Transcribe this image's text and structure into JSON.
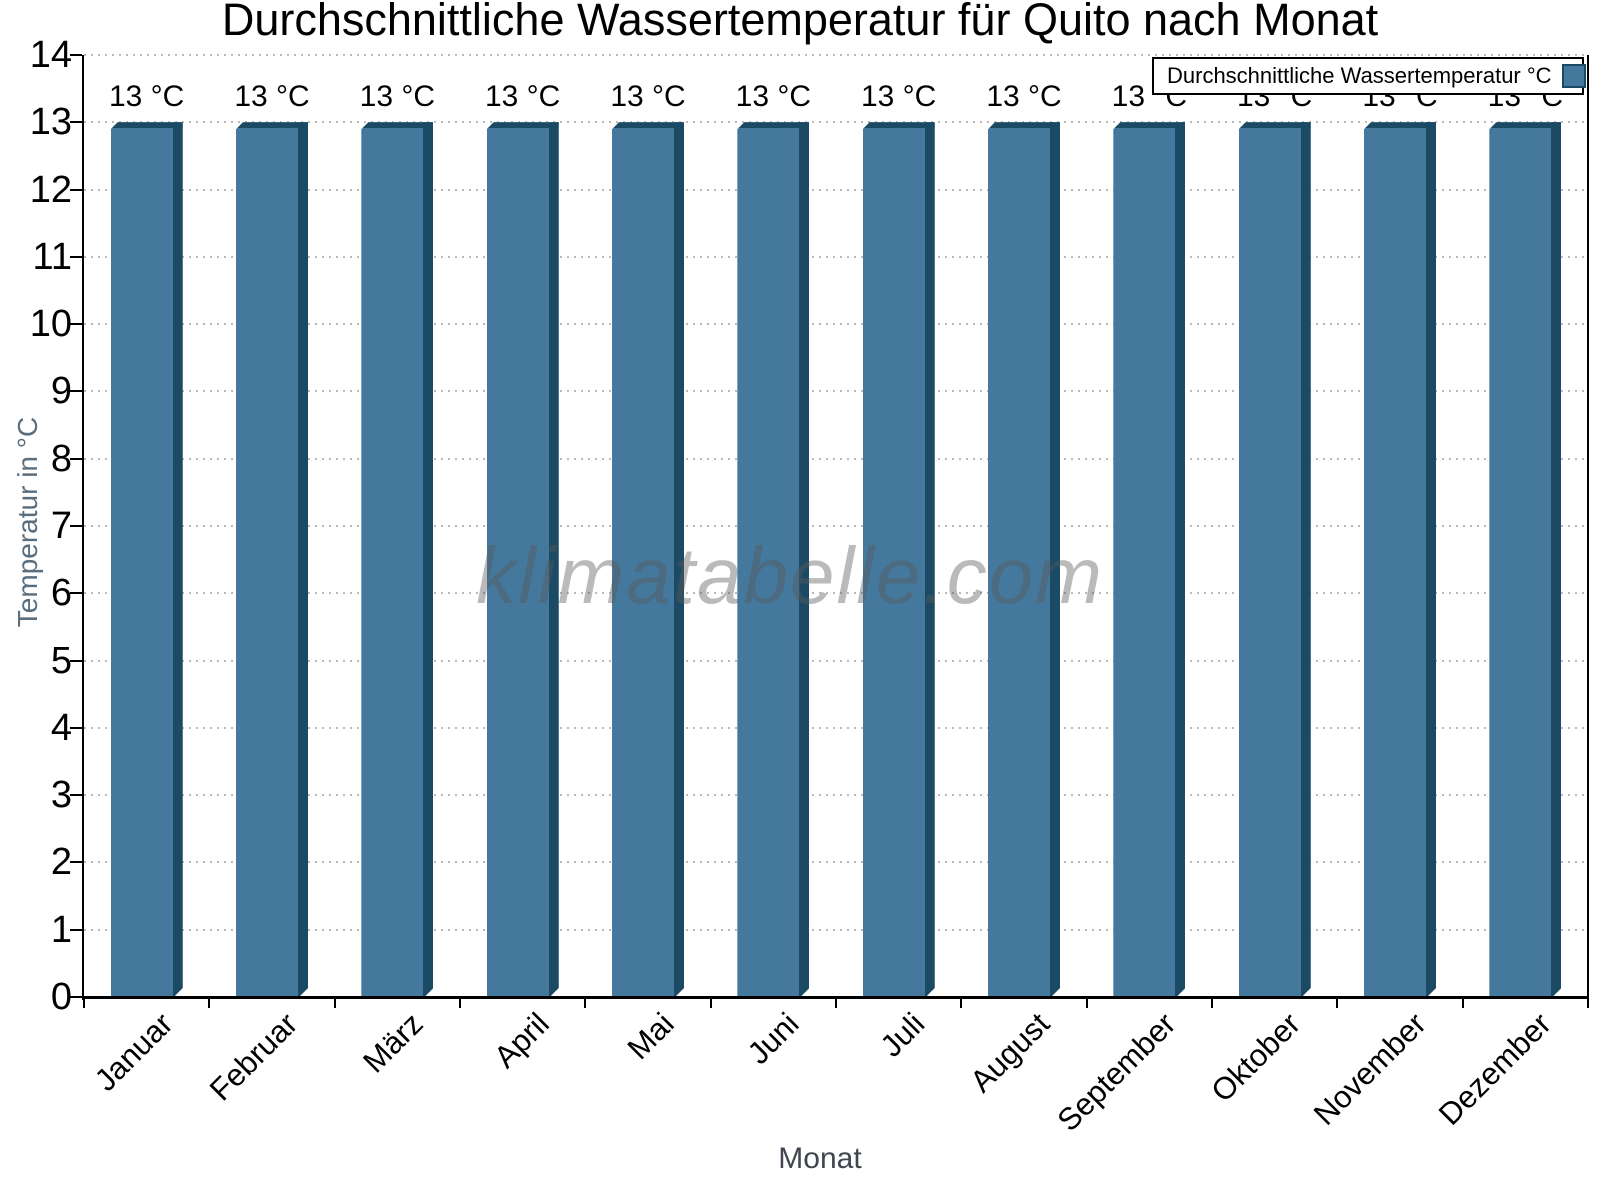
{
  "chart_data": {
    "type": "bar",
    "title": "Durchschnittliche Wassertemperatur für Quito nach Monat",
    "xlabel": "Monat",
    "ylabel": "Temperatur in °C",
    "categories": [
      "Januar",
      "Februar",
      "März",
      "April",
      "Mai",
      "Juni",
      "Juli",
      "August",
      "September",
      "Oktober",
      "November",
      "Dezember"
    ],
    "values": [
      13,
      13,
      13,
      13,
      13,
      13,
      13,
      13,
      13,
      13,
      13,
      13
    ],
    "value_labels": [
      "13 °C",
      "13 °C",
      "13 °C",
      "13 °C",
      "13 °C",
      "13 °C",
      "13 °C",
      "13 °C",
      "13 °C",
      "13 °C",
      "13 °C",
      "13 °C"
    ],
    "unit": "°C",
    "ylim": [
      0,
      14
    ],
    "yticks": [
      0,
      1,
      2,
      3,
      4,
      5,
      6,
      7,
      8,
      9,
      10,
      11,
      12,
      13,
      14
    ],
    "grid": "horizontal-dotted",
    "legend": {
      "label": "Durchschnittliche Wassertemperatur °C",
      "position": "top-right"
    },
    "watermark": "klimatabelle.com",
    "colors": {
      "bar_fill": "#44789C",
      "bar_edge": "#1B4A64",
      "grid": "#B9B9B9",
      "axis": "#000000",
      "title_text": "#000000",
      "ylabel_text": "#5A6E7D",
      "xlabel_text": "#3F4650",
      "watermark_text": "rgba(90,90,90,0.42)",
      "background": "#FFFFFF"
    }
  }
}
